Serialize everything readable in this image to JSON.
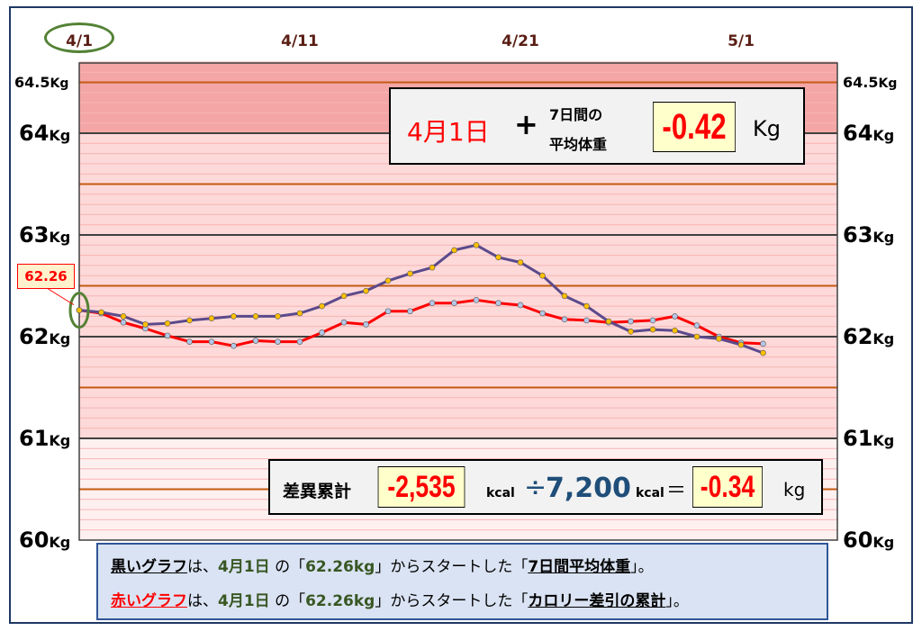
{
  "chart_data": {
    "type": "line",
    "x_labels": [
      "4/1",
      "4/11",
      "4/21",
      "5/1"
    ],
    "x_label_days": [
      1,
      11,
      21,
      31
    ],
    "y_labels_left": [
      {
        "value": 64.5,
        "num": "64.5",
        "unit": "Kg"
      },
      {
        "value": 64,
        "num": "64",
        "unit": "Kg"
      },
      {
        "value": 63,
        "num": "63",
        "unit": "Kg"
      },
      {
        "value": 62,
        "num": "62",
        "unit": "Kg"
      },
      {
        "value": 61,
        "num": "61",
        "unit": "Kg"
      },
      {
        "value": 60,
        "num": "60",
        "unit": "Kg"
      }
    ],
    "ylim": [
      60,
      64.7
    ],
    "xlim": [
      1,
      34
    ],
    "series": [
      {
        "name": "7日間平均体重",
        "color": "#5b4a8b",
        "marker_color": "#ffc000",
        "x": [
          1,
          2,
          3,
          4,
          5,
          6,
          7,
          8,
          9,
          10,
          11,
          12,
          13,
          14,
          15,
          16,
          17,
          18,
          19,
          20,
          21,
          22,
          23,
          24,
          25,
          26,
          27,
          28,
          29,
          30,
          31,
          32
        ],
        "y": [
          62.26,
          62.24,
          62.2,
          62.12,
          62.13,
          62.16,
          62.18,
          62.2,
          62.2,
          62.2,
          62.23,
          62.3,
          62.4,
          62.45,
          62.55,
          62.62,
          62.68,
          62.85,
          62.9,
          62.78,
          62.73,
          62.6,
          62.4,
          62.3,
          62.15,
          62.05,
          62.07,
          62.06,
          62.0,
          61.98,
          61.92,
          61.84
        ]
      },
      {
        "name": "カロリー差引の累計",
        "color": "#ff0000",
        "marker_color": "#b4c7e7",
        "x": [
          1,
          2,
          3,
          4,
          5,
          6,
          7,
          8,
          9,
          10,
          11,
          12,
          13,
          14,
          15,
          16,
          17,
          18,
          19,
          20,
          21,
          22,
          23,
          24,
          25,
          26,
          27,
          28,
          29,
          30,
          31,
          32
        ],
        "y": [
          62.26,
          62.23,
          62.14,
          62.08,
          62.01,
          61.95,
          61.95,
          61.91,
          61.96,
          61.95,
          61.95,
          62.04,
          62.14,
          62.12,
          62.25,
          62.25,
          62.33,
          62.33,
          62.36,
          62.33,
          62.31,
          62.23,
          62.17,
          62.16,
          62.14,
          62.15,
          62.16,
          62.2,
          62.11,
          62.0,
          61.94,
          61.93
        ]
      }
    ]
  },
  "start_label": "62.26",
  "top_box": {
    "date": "4月1日",
    "plus": "+",
    "line1": "7日間の",
    "line2": "平均体重",
    "value": "-0.42",
    "unit": "Kg"
  },
  "bottom_box": {
    "label": "差異累計",
    "kcal_value": "-2,535",
    "kcal_unit": "kcal",
    "divide": "÷",
    "divisor": "7,200",
    "divisor_unit": "kcal",
    "equals": "＝",
    "result": "-0.34",
    "result_unit": "kg"
  },
  "notes": {
    "line1": {
      "graph": "黒いグラフ",
      "p1": "は、",
      "date": "4月1日",
      "p2": " の「",
      "kg": "62.26kg",
      "p3": "」からスタートした「",
      "subject": "7日間平均体重",
      "p4": "」。"
    },
    "line2": {
      "graph": "赤いグラフ",
      "p1": "は、",
      "date": "4月1日",
      "p2": " の「",
      "kg": "62.26kg",
      "p3": "」からスタートした「",
      "subject": "カロリー差引の累計",
      "p4": "」。"
    }
  },
  "colors": {
    "band_top": "#f4a6a6",
    "band": "#fdd9d9",
    "band_light": "#fff0f0",
    "major_line": "#404040",
    "half_line": "#c55a11",
    "minor_line": "#f8b4b4"
  }
}
